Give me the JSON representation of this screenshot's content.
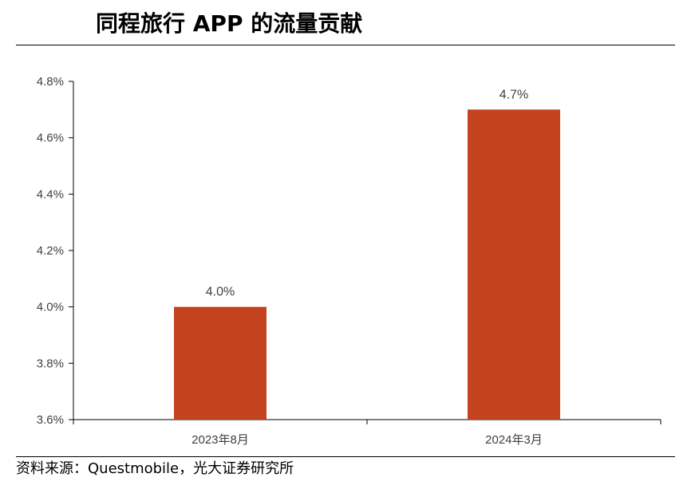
{
  "header": {
    "title": "同程旅行 APP 的流量贡献"
  },
  "footer": {
    "source": "资料来源：Questmobile，光大证券研究所"
  },
  "chart_data": {
    "type": "bar",
    "title": "",
    "xlabel": "",
    "ylabel": "",
    "categories": [
      "2023年8月",
      "2024年3月"
    ],
    "values": [
      4.0,
      4.7
    ],
    "data_labels": [
      "4.0%",
      "4.7%"
    ],
    "ylim": [
      3.6,
      4.8
    ],
    "yticks": [
      3.6,
      3.8,
      4.0,
      4.2,
      4.4,
      4.6,
      4.8
    ],
    "ytick_labels": [
      "3.6%",
      "3.8%",
      "4.0%",
      "4.2%",
      "4.4%",
      "4.6%",
      "4.8%"
    ],
    "grid": false,
    "legend": "none",
    "bar_color": "#C5421F"
  }
}
